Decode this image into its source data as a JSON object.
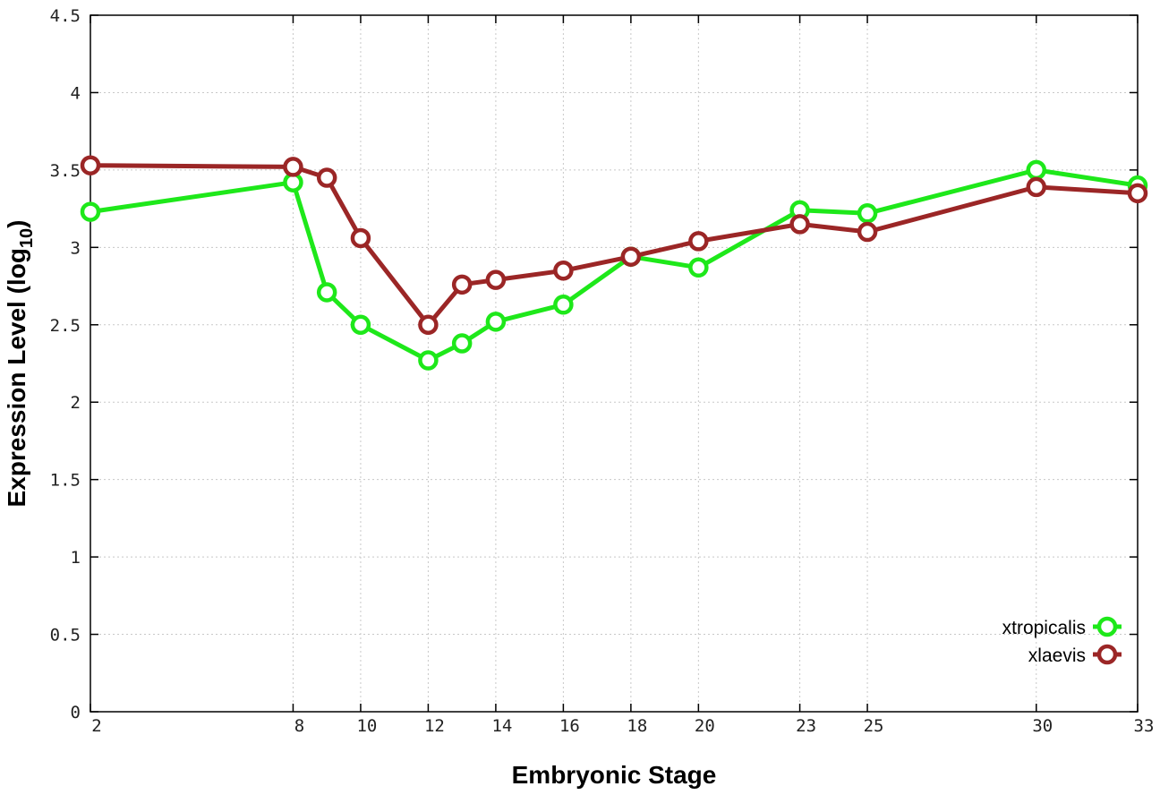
{
  "chart_data": {
    "type": "line",
    "title": "",
    "xlabel": "Embryonic Stage",
    "ylabel": {
      "main": "Expression Level (log",
      "sub": "10",
      "close": ")"
    },
    "x": [
      2,
      8,
      9,
      10,
      12,
      13,
      14,
      16,
      18,
      20,
      23,
      25,
      30,
      33
    ],
    "xticks": [
      2,
      8,
      10,
      12,
      14,
      16,
      18,
      20,
      23,
      25,
      30,
      33
    ],
    "xlim": [
      2,
      33
    ],
    "yticks": [
      "0",
      "0.5",
      "1",
      "1.5",
      "2",
      "2.5",
      "3",
      "3.5",
      "4",
      "4.5"
    ],
    "ylim": [
      0,
      4.5
    ],
    "grid": true,
    "legend_position": "bottom-right",
    "series": [
      {
        "name": "xtropicalis",
        "color": "#1ee81a",
        "marker": "open-circle",
        "values": [
          3.23,
          3.42,
          2.71,
          2.5,
          2.27,
          2.38,
          2.52,
          2.63,
          2.94,
          2.87,
          3.24,
          3.22,
          3.5,
          3.4
        ]
      },
      {
        "name": "xlaevis",
        "color": "#9b2626",
        "marker": "open-circle",
        "values": [
          3.53,
          3.52,
          3.45,
          3.06,
          2.5,
          2.76,
          2.79,
          2.85,
          2.94,
          3.04,
          3.15,
          3.1,
          3.39,
          3.35
        ]
      }
    ]
  }
}
